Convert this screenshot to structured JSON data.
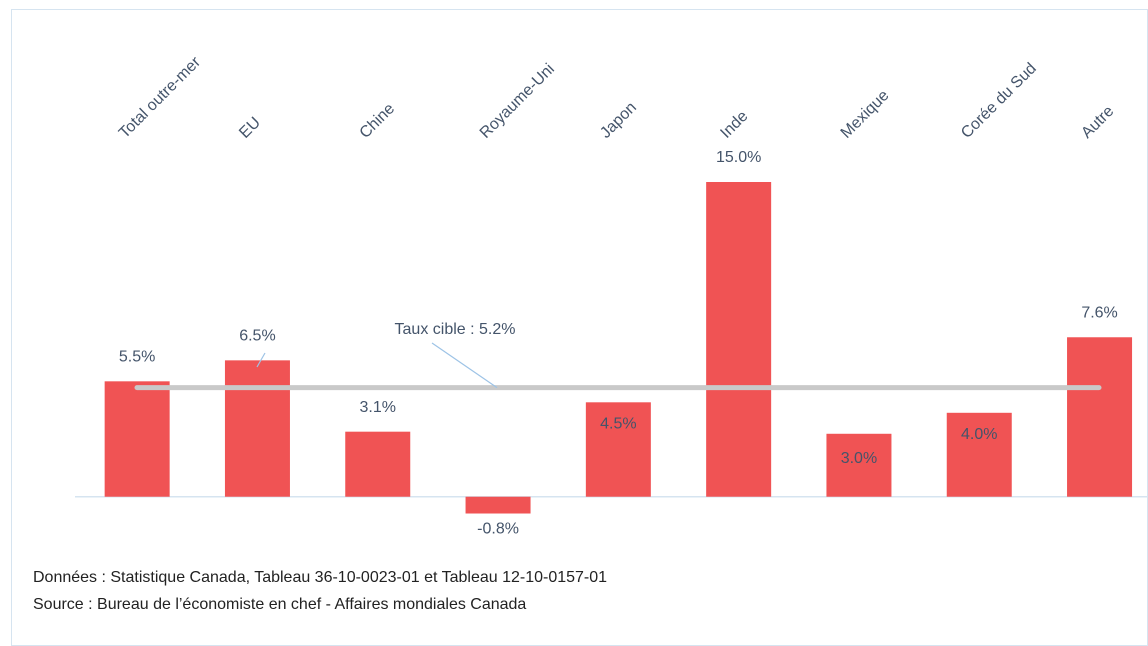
{
  "chart_data": {
    "type": "bar",
    "categories": [
      "Total outre-mer",
      "EU",
      "Chine",
      "Royaume-Uni",
      "Japon",
      "Inde",
      "Mexique",
      "Corée du Sud",
      "Autre"
    ],
    "values": [
      5.5,
      6.5,
      3.1,
      -0.8,
      4.5,
      15.0,
      3.0,
      4.0,
      7.6
    ],
    "value_labels": [
      "5.5%",
      "6.5%",
      "3.1%",
      "-0.8%",
      "4.5%",
      "15.0%",
      "3.0%",
      "4.0%",
      "7.6%"
    ],
    "color": "#f05354",
    "ylim": [
      -1.3,
      17.5
    ],
    "target": {
      "value": 5.2,
      "label": "Taux cible : 5.2%",
      "color": "#c9c9c9"
    },
    "notes": [
      "Données : Statistique Canada, Tableau 36-10-0023-01 et Tableau 12-10-0157-01",
      "Source : Bureau de l’économiste en chef - Affaires mondiales Canada"
    ]
  }
}
